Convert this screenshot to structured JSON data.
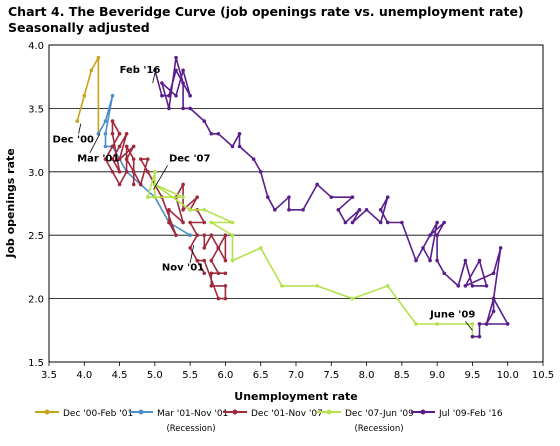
{
  "chart_data": {
    "type": "line",
    "title": "Chart 4. The Beveridge Curve (job openings rate vs. unemployment rate)",
    "subtitle": "Seasonally adjusted",
    "xlabel": "Unemployment rate",
    "ylabel": "Job openings rate",
    "xlim": [
      3.5,
      10.5
    ],
    "ylim": [
      1.5,
      4.0
    ],
    "xticks": [
      "3.5",
      "4.0",
      "4.5",
      "5.0",
      "5.5",
      "6.0",
      "6.5",
      "7.0",
      "7.5",
      "8.0",
      "8.5",
      "9.0",
      "9.5",
      "10.0",
      "10.5"
    ],
    "yticks": [
      "1.5",
      "2.0",
      "2.5",
      "3.0",
      "3.5",
      "4.0"
    ],
    "grid": "horizontal",
    "legend_position": "bottom",
    "series": [
      {
        "name": "Dec '00-Feb '01",
        "note": "",
        "color": "#c9a21a",
        "points": [
          [
            3.9,
            3.4
          ],
          [
            4.0,
            3.6
          ],
          [
            4.1,
            3.8
          ],
          [
            4.2,
            3.9
          ],
          [
            4.2,
            3.3
          ]
        ]
      },
      {
        "name": "Mar '01-Nov '01",
        "note": "(Recession)",
        "color": "#4a8fc8",
        "points": [
          [
            4.2,
            3.3
          ],
          [
            4.3,
            3.4
          ],
          [
            4.4,
            3.6
          ],
          [
            4.3,
            3.3
          ],
          [
            4.3,
            3.2
          ],
          [
            4.4,
            3.2
          ],
          [
            4.5,
            3.1
          ],
          [
            4.6,
            3.0
          ],
          [
            4.8,
            2.9
          ],
          [
            5.0,
            2.8
          ],
          [
            5.2,
            2.6
          ],
          [
            5.5,
            2.5
          ]
        ]
      },
      {
        "name": "Dec '01-Nov '07",
        "note": "",
        "color": "#a02a3c",
        "points": [
          [
            5.7,
            2.5
          ],
          [
            5.7,
            2.4
          ],
          [
            5.8,
            2.5
          ],
          [
            5.9,
            2.4
          ],
          [
            6.0,
            2.3
          ],
          [
            6.0,
            2.5
          ],
          [
            5.9,
            2.4
          ],
          [
            5.8,
            2.3
          ],
          [
            5.9,
            2.2
          ],
          [
            6.0,
            2.2
          ],
          [
            5.8,
            2.2
          ],
          [
            5.8,
            2.1
          ],
          [
            6.0,
            2.1
          ],
          [
            6.0,
            2.0
          ],
          [
            5.9,
            2.0
          ],
          [
            5.7,
            2.3
          ],
          [
            5.6,
            2.3
          ],
          [
            5.7,
            2.2
          ],
          [
            5.5,
            2.4
          ],
          [
            5.6,
            2.5
          ],
          [
            5.5,
            2.6
          ],
          [
            5.7,
            2.6
          ],
          [
            5.6,
            2.7
          ],
          [
            5.5,
            2.7
          ],
          [
            5.6,
            2.8
          ],
          [
            5.4,
            2.7
          ],
          [
            5.4,
            2.9
          ],
          [
            5.3,
            2.8
          ],
          [
            5.4,
            2.6
          ],
          [
            5.2,
            2.7
          ],
          [
            5.2,
            2.6
          ],
          [
            5.3,
            2.5
          ],
          [
            5.1,
            2.8
          ],
          [
            4.9,
            3.0
          ],
          [
            5.0,
            2.9
          ],
          [
            4.8,
            3.1
          ],
          [
            4.9,
            3.1
          ],
          [
            4.8,
            2.9
          ],
          [
            4.7,
            3.0
          ],
          [
            4.6,
            3.1
          ],
          [
            4.7,
            3.2
          ],
          [
            4.5,
            3.1
          ],
          [
            4.6,
            3.3
          ],
          [
            4.5,
            3.2
          ],
          [
            4.4,
            3.1
          ],
          [
            4.5,
            3.0
          ],
          [
            4.4,
            3.3
          ],
          [
            4.4,
            3.4
          ],
          [
            4.5,
            3.3
          ],
          [
            4.4,
            3.2
          ],
          [
            4.3,
            3.1
          ],
          [
            4.4,
            3.0
          ],
          [
            4.5,
            2.9
          ],
          [
            4.6,
            3.0
          ],
          [
            4.6,
            3.2
          ],
          [
            4.7,
            3.1
          ],
          [
            4.7,
            2.9
          ]
        ]
      },
      {
        "name": "Dec '07-Jun '09",
        "note": "(Recession)",
        "color": "#b3e24a",
        "points": [
          [
            5.0,
            2.8
          ],
          [
            5.0,
            3.0
          ],
          [
            4.9,
            2.8
          ],
          [
            5.0,
            2.8
          ],
          [
            5.4,
            2.8
          ],
          [
            5.0,
            2.9
          ],
          [
            5.5,
            2.7
          ],
          [
            5.7,
            2.7
          ],
          [
            6.1,
            2.6
          ],
          [
            5.8,
            2.6
          ],
          [
            6.1,
            2.5
          ],
          [
            6.1,
            2.3
          ],
          [
            6.5,
            2.4
          ],
          [
            6.8,
            2.1
          ],
          [
            7.3,
            2.1
          ],
          [
            7.8,
            2.0
          ],
          [
            8.3,
            2.1
          ],
          [
            8.7,
            1.8
          ],
          [
            9.0,
            1.8
          ],
          [
            9.5,
            1.8
          ],
          [
            9.5,
            1.7
          ]
        ]
      },
      {
        "name": "Jul '09-Feb '16",
        "note": "",
        "color": "#5a1e8c",
        "points": [
          [
            9.5,
            1.7
          ],
          [
            9.6,
            1.7
          ],
          [
            9.6,
            1.8
          ],
          [
            9.7,
            1.8
          ],
          [
            9.8,
            1.9
          ],
          [
            9.8,
            2.0
          ],
          [
            10.0,
            1.8
          ],
          [
            9.7,
            1.8
          ],
          [
            9.8,
            2.0
          ],
          [
            9.9,
            2.4
          ],
          [
            9.8,
            2.2
          ],
          [
            9.4,
            2.1
          ],
          [
            9.6,
            2.3
          ],
          [
            9.7,
            2.1
          ],
          [
            9.5,
            2.1
          ],
          [
            9.4,
            2.3
          ],
          [
            9.3,
            2.1
          ],
          [
            9.1,
            2.2
          ],
          [
            9.0,
            2.3
          ],
          [
            9.0,
            2.5
          ],
          [
            9.1,
            2.6
          ],
          [
            8.9,
            2.5
          ],
          [
            8.8,
            2.4
          ],
          [
            8.9,
            2.3
          ],
          [
            9.0,
            2.6
          ],
          [
            8.7,
            2.3
          ],
          [
            8.5,
            2.6
          ],
          [
            8.3,
            2.6
          ],
          [
            8.2,
            2.7
          ],
          [
            8.3,
            2.8
          ],
          [
            8.2,
            2.6
          ],
          [
            8.0,
            2.7
          ],
          [
            7.8,
            2.6
          ],
          [
            7.9,
            2.7
          ],
          [
            7.7,
            2.6
          ],
          [
            7.6,
            2.7
          ],
          [
            7.8,
            2.8
          ],
          [
            7.5,
            2.8
          ],
          [
            7.3,
            2.9
          ],
          [
            7.1,
            2.7
          ],
          [
            6.9,
            2.7
          ],
          [
            6.9,
            2.8
          ],
          [
            6.7,
            2.7
          ],
          [
            6.6,
            2.8
          ],
          [
            6.5,
            3.0
          ],
          [
            6.4,
            3.1
          ],
          [
            6.2,
            3.2
          ],
          [
            6.2,
            3.3
          ],
          [
            6.1,
            3.2
          ],
          [
            5.9,
            3.3
          ],
          [
            5.8,
            3.3
          ],
          [
            5.7,
            3.4
          ],
          [
            5.5,
            3.5
          ],
          [
            5.4,
            3.5
          ],
          [
            5.4,
            3.7
          ],
          [
            5.3,
            3.9
          ],
          [
            5.2,
            3.5
          ],
          [
            5.1,
            3.7
          ],
          [
            5.3,
            3.6
          ],
          [
            5.4,
            3.8
          ],
          [
            5.5,
            3.6
          ],
          [
            5.3,
            3.8
          ],
          [
            5.2,
            3.6
          ],
          [
            5.1,
            3.6
          ],
          [
            5.0,
            3.8
          ]
        ]
      }
    ],
    "annotations": [
      {
        "text": "Feb '16",
        "x": 4.5,
        "y": 3.78
      },
      {
        "text": "Dec '00",
        "x": 3.55,
        "y": 3.23
      },
      {
        "text": "Mar '01",
        "x": 3.9,
        "y": 3.08
      },
      {
        "text": "Dec '07",
        "x": 5.2,
        "y": 3.08
      },
      {
        "text": "Nov '01",
        "x": 5.1,
        "y": 2.22
      },
      {
        "text": "June '09",
        "x": 8.9,
        "y": 1.85
      }
    ]
  }
}
